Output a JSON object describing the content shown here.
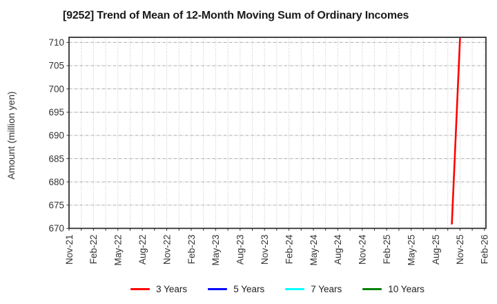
{
  "chart_data": {
    "type": "line",
    "title": "[9252]  Trend of Mean of 12-Month Moving Sum of Ordinary Incomes",
    "ylabel": "Amount (million yen)",
    "xlabel": "",
    "ylim": [
      670,
      711
    ],
    "yticks": [
      670,
      675,
      680,
      685,
      690,
      695,
      700,
      705,
      710
    ],
    "x_tick_labels": [
      "Nov-21",
      "Feb-22",
      "May-22",
      "Aug-22",
      "Nov-22",
      "Feb-23",
      "May-23",
      "Aug-23",
      "Nov-23",
      "Feb-24",
      "May-24",
      "Aug-24",
      "Nov-24",
      "Feb-25",
      "May-25",
      "Aug-25",
      "Nov-25",
      "Feb-26"
    ],
    "x_tick_interval_months": 3,
    "minor_vgrid_interval_months": 1.5,
    "grid": true,
    "legend_position": "bottom-center",
    "series": [
      {
        "name": "3 Years",
        "color": "#ff0000",
        "points": [
          {
            "x_label": "Oct-25",
            "month_index": 47,
            "value": 671
          },
          {
            "x_label": "Nov-25",
            "month_index": 48,
            "value": 710.8
          }
        ]
      },
      {
        "name": "5 Years",
        "color": "#0000ff",
        "points": []
      },
      {
        "name": "7 Years",
        "color": "#00ffff",
        "points": []
      },
      {
        "name": "10 Years",
        "color": "#008000",
        "points": []
      }
    ],
    "colors": {
      "plot_border": "#262626",
      "h_grid": "#aaaaaa",
      "v_grid": "#bcbcbc",
      "tick_text": "#333333",
      "title_text": "#1a1a1a"
    }
  }
}
